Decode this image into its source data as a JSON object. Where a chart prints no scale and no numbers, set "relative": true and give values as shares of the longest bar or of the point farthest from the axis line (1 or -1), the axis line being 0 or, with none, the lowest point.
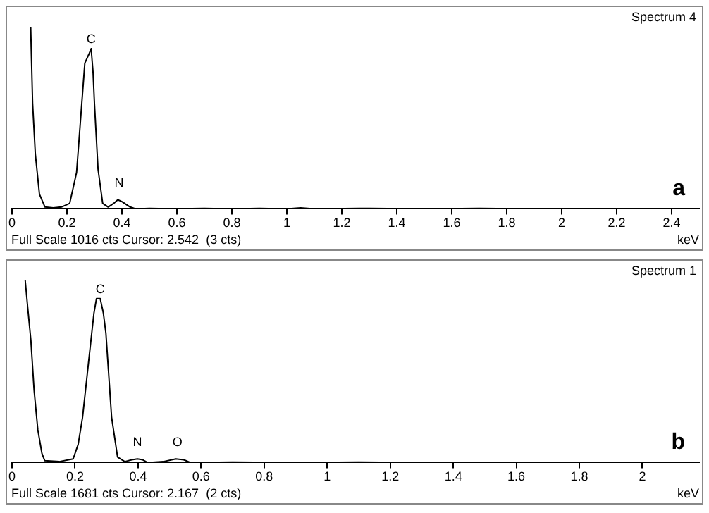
{
  "chart_data": [
    {
      "type": "line",
      "title": "Spectrum 4",
      "xlabel": "keV",
      "relative": true,
      "x": [
        0.068,
        0.075,
        0.085,
        0.1,
        0.12,
        0.15,
        0.18,
        0.21,
        0.235,
        0.25,
        0.265,
        0.28,
        0.288,
        0.295,
        0.3,
        0.313,
        0.33,
        0.35,
        0.37,
        0.385,
        0.4,
        0.43,
        0.45,
        0.5,
        0.6,
        0.7,
        0.8,
        0.9,
        1.0,
        1.05,
        1.1,
        1.3,
        1.5,
        1.7,
        1.9,
        2.1,
        2.3,
        2.5
      ],
      "series": [
        {
          "color": "#000000",
          "values": [
            1,
            0.58,
            0.3,
            0.08,
            0.01,
            0.005,
            0.01,
            0.03,
            0.2,
            0.5,
            0.8,
            0.85,
            0.88,
            0.75,
            0.58,
            0.22,
            0.03,
            0.01,
            0.03,
            0.05,
            0.04,
            0.01,
            0,
            0.003,
            0,
            0.003,
            0,
            0.003,
            0,
            0.005,
            0,
            0.003,
            0,
            0.003,
            0,
            0.002,
            0,
            0
          ]
        }
      ],
      "xlim": [
        0,
        2.5
      ],
      "xticks": [
        0,
        0.2,
        0.4,
        0.6,
        0.8,
        1,
        1.2,
        1.4,
        1.6,
        1.8,
        2,
        2.2,
        2.4
      ],
      "annotations": [
        {
          "text": "C",
          "x": 0.288,
          "y": 0.88
        },
        {
          "text": "N",
          "x": 0.39,
          "y": 0.09
        },
        "a",
        "Full Scale 1016 cts Cursor: 2.542  (3 cts)"
      ]
    },
    {
      "type": "line",
      "title": "Spectrum 1",
      "xlabel": "keV",
      "relative": true,
      "x": [
        0.042,
        0.05,
        0.06,
        0.07,
        0.082,
        0.095,
        0.104,
        0.15,
        0.194,
        0.21,
        0.224,
        0.246,
        0.26,
        0.268,
        0.28,
        0.29,
        0.298,
        0.316,
        0.335,
        0.358,
        0.38,
        0.398,
        0.415,
        0.43,
        0.48,
        0.52,
        0.545,
        0.566,
        0.7,
        0.9,
        1.1,
        1.3,
        1.5,
        1.7,
        1.9,
        2.1,
        2.18
      ],
      "series": [
        {
          "color": "#000000",
          "values": [
            1,
            0.85,
            0.67,
            0.4,
            0.18,
            0.05,
            0.01,
            0.005,
            0.02,
            0.1,
            0.25,
            0.6,
            0.82,
            0.9,
            0.9,
            0.82,
            0.71,
            0.25,
            0.03,
            0.005,
            0.015,
            0.02,
            0.015,
            0,
            0.005,
            0.02,
            0.015,
            0,
            0.003,
            0,
            0.003,
            0,
            0.002,
            0,
            0.002,
            0,
            0
          ]
        }
      ],
      "xlim": [
        0,
        2.18
      ],
      "xticks": [
        0,
        0.2,
        0.4,
        0.6,
        0.8,
        1,
        1.2,
        1.4,
        1.6,
        1.8,
        2
      ],
      "annotations": [
        {
          "text": "C",
          "x": 0.28,
          "y": 0.9
        },
        {
          "text": "N",
          "x": 0.398,
          "y": 0.06
        },
        {
          "text": "O",
          "x": 0.525,
          "y": 0.06
        },
        "b",
        "Full Scale 1681 cts Cursor: 2.167  (2 cts)"
      ]
    }
  ]
}
